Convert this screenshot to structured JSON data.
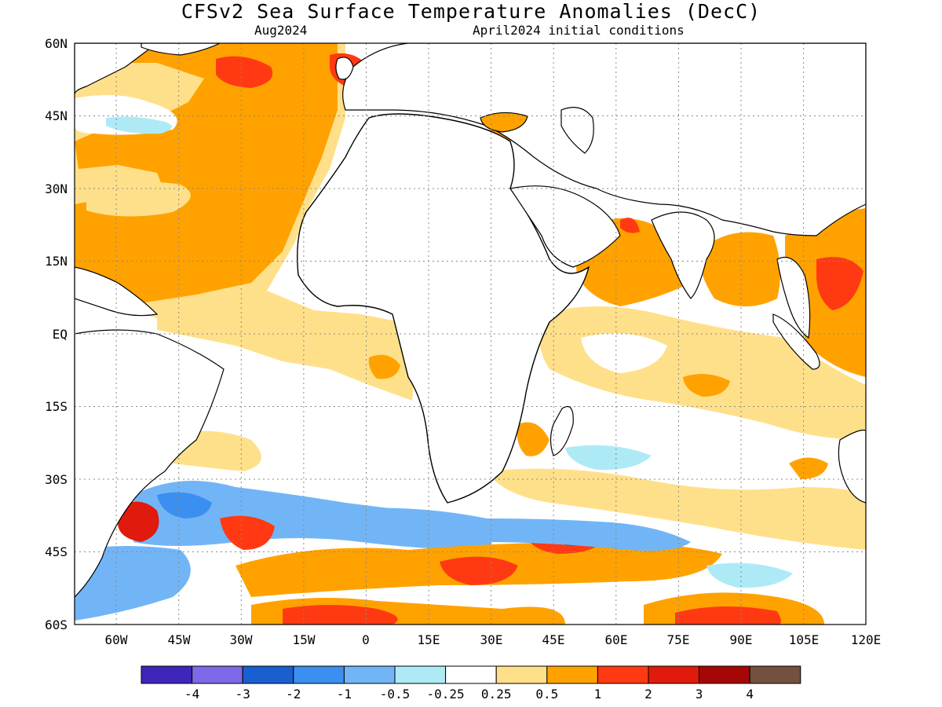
{
  "title": "CFSv2 Sea Surface Temperature Anomalies (DecC)",
  "subtitle_left": "Aug2024",
  "subtitle_right": "April2024 initial conditions",
  "map": {
    "lon_range": [
      -70,
      120
    ],
    "lat_range": [
      -60,
      60
    ],
    "lat_labels": [
      "60N",
      "45N",
      "30N",
      "15N",
      "EQ",
      "15S",
      "30S",
      "45S",
      "60S"
    ],
    "lon_labels": [
      "60W",
      "45W",
      "30W",
      "15W",
      "0",
      "15E",
      "30E",
      "45E",
      "60E",
      "75E",
      "90E",
      "105E",
      "120E"
    ],
    "grid": "dotted"
  },
  "colorbar": {
    "colors": [
      "#3f26b8",
      "#7e69e8",
      "#1a5fd0",
      "#3b8ff0",
      "#72b5f6",
      "#aeeaf6",
      "#ffffff",
      "#ffe08a",
      "#ffa200",
      "#ff3a12",
      "#e01a0c",
      "#a50606",
      "#74503e"
    ],
    "labels": [
      "-4",
      "-3",
      "-2",
      "-1",
      "-0.5",
      "-0.25",
      "0.25",
      "0.5",
      "1",
      "2",
      "3",
      "4"
    ]
  }
}
